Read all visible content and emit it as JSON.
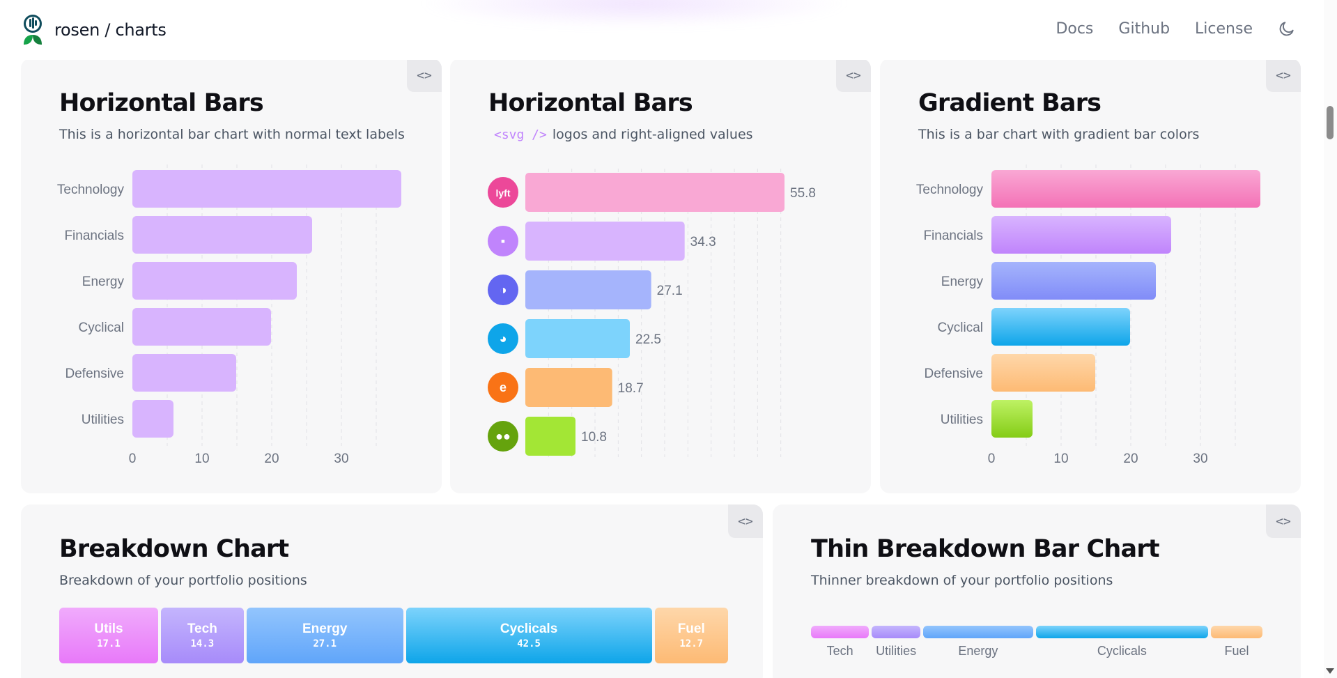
{
  "header": {
    "brand": "rosen / charts",
    "nav": [
      "Docs",
      "Github",
      "License"
    ]
  },
  "code_button": "<>",
  "cards": [
    {
      "title": "Horizontal Bars",
      "subtitle": "This is a horizontal bar chart with normal text labels"
    },
    {
      "title": "Horizontal Bars",
      "subtitle_code": "<svg />",
      "subtitle": "logos and right-aligned values"
    },
    {
      "title": "Gradient Bars",
      "subtitle": "This is a bar chart with gradient bar colors"
    },
    {
      "title": "Breakdown Chart",
      "subtitle": "Breakdown of your portfolio positions"
    },
    {
      "title": "Thin Breakdown Bar Chart",
      "subtitle": "Thinner breakdown of your portfolio positions"
    }
  ],
  "chart_data": [
    {
      "type": "bar",
      "orientation": "horizontal",
      "categories": [
        "Technology",
        "Financials",
        "Energy",
        "Cyclical",
        "Defensive",
        "Utilities"
      ],
      "values": [
        38.6,
        25.8,
        23.6,
        19.9,
        14.9,
        5.9
      ],
      "xticks": [
        0,
        10,
        20,
        30
      ],
      "xlim": [
        0,
        40
      ],
      "grid": true,
      "color": "#d8b4fe"
    },
    {
      "type": "bar",
      "orientation": "horizontal",
      "categories": [
        "lyft",
        "teams",
        "ring",
        "duck",
        "e",
        "owl"
      ],
      "values": [
        55.8,
        34.3,
        27.1,
        22.5,
        18.7,
        10.8
      ],
      "value_labels": [
        "55.8",
        "34.3",
        "27.1",
        "22.5",
        "18.7",
        "10.8"
      ],
      "xlim": [
        0,
        60
      ],
      "grid": true,
      "colors": [
        "#f9a8d4",
        "#d8b4fe",
        "#a5b4fc",
        "#7dd3fc",
        "#fdba74",
        "#a3e635"
      ],
      "logo_colors": [
        "#ec4899",
        "#c084fc",
        "#6366f1",
        "#0ea5e9",
        "#f97316",
        "#65a30d"
      ]
    },
    {
      "type": "bar",
      "orientation": "horizontal",
      "categories": [
        "Technology",
        "Financials",
        "Energy",
        "Cyclical",
        "Defensive",
        "Utilities"
      ],
      "values": [
        38.6,
        25.8,
        23.6,
        19.9,
        14.9,
        5.9
      ],
      "xticks": [
        0,
        10,
        20,
        30
      ],
      "xlim": [
        0,
        40
      ],
      "grid": true,
      "gradients": [
        [
          "#f9a8d4",
          "#f472b6"
        ],
        [
          "#d8b4fe",
          "#c084fc"
        ],
        [
          "#a5b4fc",
          "#818cf8"
        ],
        [
          "#7dd3fc",
          "#0ea5e9"
        ],
        [
          "#fed7aa",
          "#fdba74"
        ],
        [
          "#bef264",
          "#84cc16"
        ]
      ]
    },
    {
      "type": "bar",
      "orientation": "stacked-breakdown",
      "segments": [
        {
          "label": "Utils",
          "value": "17.1",
          "from": "#f0abfc",
          "to": "#e879f9"
        },
        {
          "label": "Tech",
          "value": "14.3",
          "from": "#c4b5fd",
          "to": "#a78bfa"
        },
        {
          "label": "Energy",
          "value": "27.1",
          "from": "#93c5fd",
          "to": "#60a5fa"
        },
        {
          "label": "Cyclicals",
          "value": "42.5",
          "from": "#7dd3fc",
          "to": "#0ea5e9"
        },
        {
          "label": "Fuel",
          "value": "12.7",
          "from": "#fed7aa",
          "to": "#fdba74"
        }
      ]
    },
    {
      "type": "bar",
      "orientation": "stacked-breakdown-thin",
      "segments": [
        {
          "label": "Tech",
          "value": 14.3,
          "from": "#f0abfc",
          "to": "#e879f9"
        },
        {
          "label": "Utilities",
          "value": 12.0,
          "from": "#c4b5fd",
          "to": "#a78bfa"
        },
        {
          "label": "Energy",
          "value": 27.1,
          "from": "#93c5fd",
          "to": "#60a5fa"
        },
        {
          "label": "Cyclicals",
          "value": 42.5,
          "from": "#7dd3fc",
          "to": "#0ea5e9"
        },
        {
          "label": "Fuel",
          "value": 12.7,
          "from": "#fed7aa",
          "to": "#fdba74"
        }
      ]
    }
  ]
}
